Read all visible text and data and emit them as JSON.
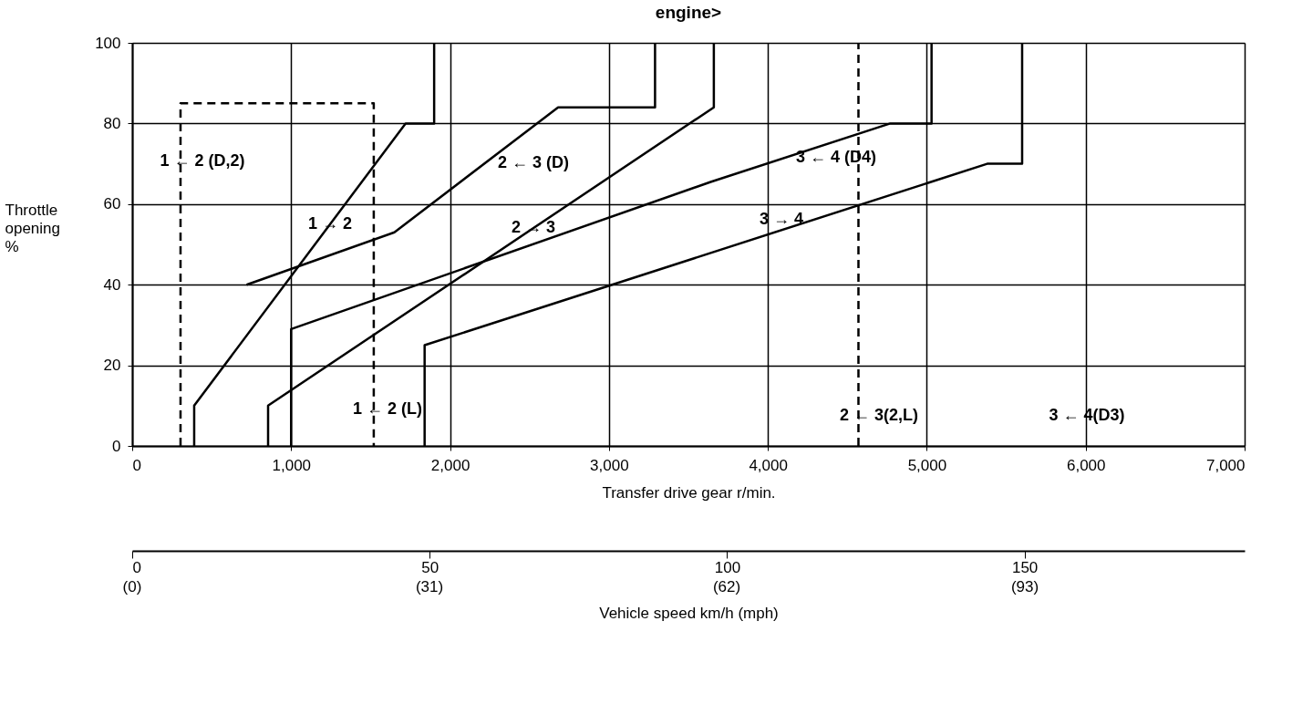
{
  "chart_data": {
    "type": "line",
    "title": "engine>",
    "xlabel": "Transfer drive gear r/min.",
    "ylabel": "Throttle opening %",
    "x2label": "Vehicle speed km/h (mph)",
    "xlim": [
      0,
      7000
    ],
    "ylim": [
      0,
      100
    ],
    "xticks": [
      0,
      {
        "value": 1000,
        "label": "1,000"
      },
      {
        "value": 2000,
        "label": "2,000"
      },
      {
        "value": 3000,
        "label": "3,000"
      },
      {
        "value": 4000,
        "label": "4,000"
      },
      {
        "value": 5000,
        "label": "5,000"
      },
      {
        "value": 6000,
        "label": "6,000"
      },
      {
        "value": 7000,
        "label": "7,000"
      }
    ],
    "yticks": [
      0,
      20,
      40,
      60,
      80,
      100
    ],
    "x2lim": [
      0,
      187
    ],
    "x2ticks": [
      0,
      50,
      100,
      150
    ],
    "grid": true,
    "series": [
      {
        "color": "#000000",
        "line_style": "dashed",
        "x": [
          304,
          304,
          1520,
          1520
        ],
        "values": [
          0,
          85,
          85,
          0
        ]
      },
      {
        "color": "#000000",
        "line_style": "solid",
        "x": [
          390,
          390,
          1720,
          1900,
          1900
        ],
        "values": [
          0,
          10,
          80,
          80,
          100
        ]
      },
      {
        "color": "#000000",
        "line_style": "solid",
        "x": [
          720,
          1650,
          2680,
          3290,
          3290
        ],
        "values": [
          40,
          53,
          84,
          84,
          100
        ]
      },
      {
        "color": "#000000",
        "line_style": "solid",
        "x": [
          855,
          855,
          3660,
          3660
        ],
        "values": [
          0,
          10,
          84,
          100
        ]
      },
      {
        "color": "#000000",
        "line_style": "solid",
        "x": [
          1000,
          1000,
          3640,
          4770,
          5030,
          5030
        ],
        "values": [
          0,
          29,
          65.5,
          80,
          80,
          100
        ]
      },
      {
        "color": "#000000",
        "line_style": "solid",
        "x": [
          1840,
          1840,
          5380,
          5600,
          5600
        ],
        "values": [
          0,
          25,
          70,
          70,
          100
        ]
      },
      {
        "color": "#000000",
        "line_style": "dashed",
        "x": [
          4570,
          4570
        ],
        "values": [
          0,
          100
        ]
      }
    ],
    "annotations": [
      "1 ← 2 (D,2)",
      {
        "text": "1 → 2",
        "x": 1245,
        "y": 55
      },
      "1 ← 2 (L)",
      "2 ← 3 (D)",
      {
        "text": "2 → 3",
        "x": 2524,
        "y": 54
      },
      "3 ← 4 (D4)",
      "3 → 4",
      "2 ← 3(2,L)",
      "3 ← 4(D3)",
      "(0)",
      "(31)",
      "(62)",
      "(93)"
    ]
  }
}
